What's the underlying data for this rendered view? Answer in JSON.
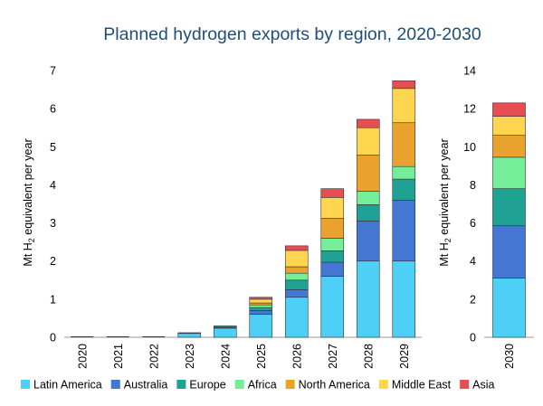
{
  "chart_data": {
    "title": "Planned hydrogen exports by region, 2020-2030",
    "type": "bar",
    "stacked": true,
    "ylabel_main": "Mt H",
    "ylabel_sub": "2",
    "ylabel_rest": " equivalent per year",
    "legend_position": "bottom",
    "grid": false,
    "panels": [
      {
        "categories": [
          "2020",
          "2021",
          "2022",
          "2023",
          "2024",
          "2025",
          "2026",
          "2027",
          "2028",
          "2029"
        ],
        "ylim": [
          0,
          7
        ],
        "yticks": [
          "0",
          "1",
          "2",
          "3",
          "4",
          "5",
          "6",
          "7"
        ],
        "series": [
          {
            "name": "Latin America",
            "values": [
              0.0,
              0.0,
              0.0,
              0.1,
              0.24,
              0.6,
              1.05,
              1.6,
              2.0,
              2.0
            ]
          },
          {
            "name": "Australia",
            "values": [
              0.0,
              0.0,
              0.0,
              0.02,
              0.02,
              0.1,
              0.2,
              0.37,
              1.05,
              1.6
            ]
          },
          {
            "name": "Europe",
            "values": [
              0.0,
              0.0,
              0.0,
              0.0,
              0.04,
              0.08,
              0.25,
              0.3,
              0.43,
              0.55
            ]
          },
          {
            "name": "Africa",
            "values": [
              0.0,
              0.0,
              0.0,
              0.0,
              0.0,
              0.07,
              0.18,
              0.33,
              0.35,
              0.33
            ]
          },
          {
            "name": "North America",
            "values": [
              0.0,
              0.0,
              0.0,
              0.0,
              0.0,
              0.05,
              0.17,
              0.52,
              0.95,
              1.15
            ]
          },
          {
            "name": "Middle East",
            "values": [
              0.0,
              0.0,
              0.0,
              0.0,
              0.0,
              0.1,
              0.43,
              0.55,
              0.72,
              0.9
            ]
          },
          {
            "name": "Asia",
            "values": [
              0.0,
              0.0,
              0.0,
              0.0,
              0.0,
              0.05,
              0.12,
              0.23,
              0.22,
              0.2
            ]
          }
        ]
      },
      {
        "categories": [
          "2030"
        ],
        "ylim": [
          0,
          14
        ],
        "yticks": [
          "0",
          "2",
          "4",
          "6",
          "8",
          "10",
          "12",
          "14"
        ],
        "series": [
          {
            "name": "Latin America",
            "values": [
              3.1
            ]
          },
          {
            "name": "Australia",
            "values": [
              2.75
            ]
          },
          {
            "name": "Europe",
            "values": [
              1.95
            ]
          },
          {
            "name": "Africa",
            "values": [
              1.65
            ]
          },
          {
            "name": "North America",
            "values": [
              1.15
            ]
          },
          {
            "name": "Middle East",
            "values": [
              1.0
            ]
          },
          {
            "name": "Asia",
            "values": [
              0.7
            ]
          }
        ]
      }
    ],
    "colors": {
      "Latin America": "#4dcff6",
      "Australia": "#4477d1",
      "Europe": "#1fa294",
      "Africa": "#74ee99",
      "North America": "#e9a22e",
      "Middle East": "#fdd54f",
      "Asia": "#e54e53"
    },
    "legend": [
      "Latin America",
      "Australia",
      "Europe",
      "Africa",
      "North America",
      "Middle East",
      "Asia"
    ]
  }
}
